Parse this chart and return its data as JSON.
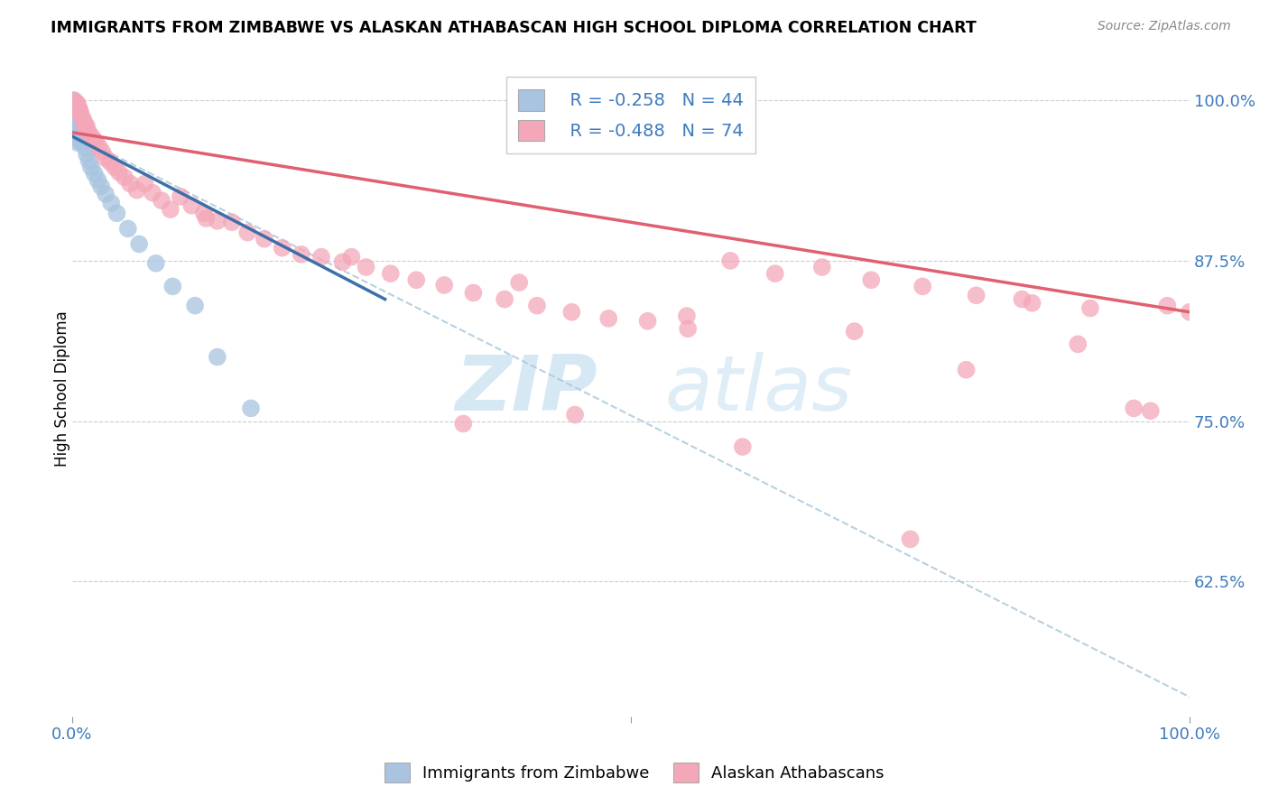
{
  "title": "IMMIGRANTS FROM ZIMBABWE VS ALASKAN ATHABASCAN HIGH SCHOOL DIPLOMA CORRELATION CHART",
  "source": "Source: ZipAtlas.com",
  "ylabel": "High School Diploma",
  "ytick_labels": [
    "100.0%",
    "87.5%",
    "75.0%",
    "62.5%"
  ],
  "ytick_values": [
    1.0,
    0.875,
    0.75,
    0.625
  ],
  "ylim": [
    0.52,
    1.03
  ],
  "xlim": [
    0.0,
    1.0
  ],
  "legend_blue_r": "R = -0.258",
  "legend_blue_n": "N = 44",
  "legend_pink_r": "R = -0.488",
  "legend_pink_n": "N = 74",
  "legend_blue_label": "Immigrants from Zimbabwe",
  "legend_pink_label": "Alaskan Athabascans",
  "blue_color": "#a8c4e0",
  "pink_color": "#f4a7b9",
  "blue_line_color": "#3d6fa8",
  "pink_line_color": "#e06070",
  "dashed_line_color": "#b0ccdd",
  "watermark_zip": "ZIP",
  "watermark_atlas": "atlas",
  "blue_line_x": [
    0.0,
    0.28
  ],
  "blue_line_y": [
    0.972,
    0.845
  ],
  "pink_line_x": [
    0.0,
    1.0
  ],
  "pink_line_y": [
    0.975,
    0.835
  ],
  "dash_line_x": [
    0.02,
    1.0
  ],
  "dash_line_y": [
    0.965,
    0.535
  ],
  "blue_scatter_x": [
    0.001,
    0.001,
    0.002,
    0.002,
    0.003,
    0.003,
    0.003,
    0.003,
    0.004,
    0.004,
    0.004,
    0.005,
    0.005,
    0.005,
    0.005,
    0.006,
    0.006,
    0.006,
    0.007,
    0.007,
    0.007,
    0.008,
    0.008,
    0.009,
    0.009,
    0.01,
    0.011,
    0.012,
    0.013,
    0.015,
    0.017,
    0.02,
    0.023,
    0.026,
    0.03,
    0.035,
    0.04,
    0.05,
    0.06,
    0.075,
    0.09,
    0.11,
    0.13,
    0.16
  ],
  "blue_scatter_y": [
    1.0,
    0.995,
    0.998,
    0.992,
    0.995,
    0.988,
    0.982,
    0.975,
    0.993,
    0.986,
    0.978,
    0.99,
    0.982,
    0.974,
    0.967,
    0.985,
    0.978,
    0.97,
    0.983,
    0.975,
    0.968,
    0.98,
    0.972,
    0.977,
    0.968,
    0.972,
    0.968,
    0.963,
    0.958,
    0.953,
    0.948,
    0.943,
    0.938,
    0.933,
    0.927,
    0.92,
    0.912,
    0.9,
    0.888,
    0.873,
    0.855,
    0.84,
    0.8,
    0.76
  ],
  "pink_scatter_x": [
    0.002,
    0.004,
    0.005,
    0.006,
    0.007,
    0.008,
    0.009,
    0.01,
    0.011,
    0.012,
    0.013,
    0.015,
    0.017,
    0.019,
    0.021,
    0.024,
    0.027,
    0.03,
    0.034,
    0.038,
    0.042,
    0.047,
    0.052,
    0.058,
    0.065,
    0.072,
    0.08,
    0.088,
    0.097,
    0.107,
    0.118,
    0.13,
    0.143,
    0.157,
    0.172,
    0.188,
    0.205,
    0.223,
    0.242,
    0.263,
    0.285,
    0.308,
    0.333,
    0.359,
    0.387,
    0.416,
    0.447,
    0.48,
    0.515,
    0.551,
    0.589,
    0.629,
    0.671,
    0.715,
    0.761,
    0.809,
    0.859,
    0.911,
    0.965,
    1.0,
    0.12,
    0.25,
    0.4,
    0.55,
    0.7,
    0.8,
    0.85,
    0.9,
    0.95,
    0.98,
    0.35,
    0.45,
    0.6,
    0.75
  ],
  "pink_scatter_y": [
    1.0,
    0.998,
    0.997,
    0.994,
    0.992,
    0.989,
    0.986,
    0.985,
    0.982,
    0.979,
    0.98,
    0.975,
    0.972,
    0.97,
    0.968,
    0.964,
    0.96,
    0.955,
    0.952,
    0.948,
    0.944,
    0.94,
    0.935,
    0.93,
    0.935,
    0.928,
    0.922,
    0.915,
    0.925,
    0.918,
    0.912,
    0.906,
    0.905,
    0.897,
    0.892,
    0.885,
    0.88,
    0.878,
    0.874,
    0.87,
    0.865,
    0.86,
    0.856,
    0.85,
    0.845,
    0.84,
    0.835,
    0.83,
    0.828,
    0.822,
    0.875,
    0.865,
    0.87,
    0.86,
    0.855,
    0.848,
    0.842,
    0.838,
    0.758,
    0.835,
    0.908,
    0.878,
    0.858,
    0.832,
    0.82,
    0.79,
    0.845,
    0.81,
    0.76,
    0.84,
    0.748,
    0.755,
    0.73,
    0.658
  ]
}
